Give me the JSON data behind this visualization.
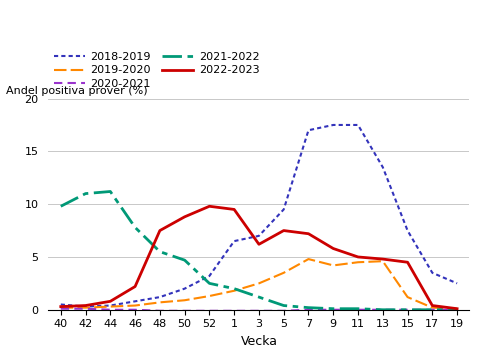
{
  "ylabel": "Andel positiva prover (%)",
  "xlabel": "Vecka",
  "ylim": [
    0,
    20
  ],
  "yticks": [
    0,
    5,
    10,
    15,
    20
  ],
  "x_labels": [
    "40",
    "42",
    "44",
    "46",
    "48",
    "50",
    "52",
    "1",
    "3",
    "5",
    "7",
    "9",
    "11",
    "13",
    "15",
    "17",
    "19"
  ],
  "seasons": {
    "2018-2019": {
      "color": "#3333bb",
      "linewidth": 1.5,
      "values": [
        0.5,
        0.3,
        0.4,
        0.8,
        1.2,
        2.0,
        3.2,
        6.5,
        7.0,
        9.5,
        17.0,
        17.5,
        17.5,
        13.5,
        7.5,
        3.5,
        2.5
      ]
    },
    "2019-2020": {
      "color": "#ff8800",
      "linewidth": 1.5,
      "values": [
        0.2,
        0.2,
        0.3,
        0.4,
        0.7,
        0.9,
        1.3,
        1.8,
        2.5,
        3.5,
        4.8,
        4.2,
        4.5,
        4.6,
        1.2,
        0.2,
        0.1
      ]
    },
    "2020-2021": {
      "color": "#9933cc",
      "linewidth": 1.5,
      "values": [
        0.1,
        0.1,
        0.0,
        0.0,
        -0.1,
        -0.1,
        -0.1,
        -0.1,
        -0.1,
        -0.1,
        0.0,
        0.0,
        0.0,
        0.0,
        0.0,
        0.0,
        0.0
      ]
    },
    "2021-2022": {
      "color": "#009977",
      "linewidth": 2.0,
      "values": [
        9.8,
        11.0,
        11.2,
        7.8,
        5.5,
        4.7,
        2.5,
        2.0,
        1.2,
        0.4,
        0.2,
        0.1,
        0.1,
        0.0,
        0.0,
        0.0,
        0.0
      ]
    },
    "2022-2023": {
      "color": "#cc0000",
      "linewidth": 2.0,
      "values": [
        0.3,
        0.4,
        0.8,
        2.2,
        7.5,
        8.8,
        9.8,
        9.5,
        6.2,
        7.5,
        7.2,
        5.8,
        5.0,
        4.8,
        4.5,
        0.4,
        0.1
      ]
    }
  },
  "legend_order": [
    "2018-2019",
    "2019-2020",
    "2020-2021",
    "2021-2022",
    "2022-2023"
  ],
  "background_color": "#ffffff",
  "grid_color": "#c8c8c8"
}
